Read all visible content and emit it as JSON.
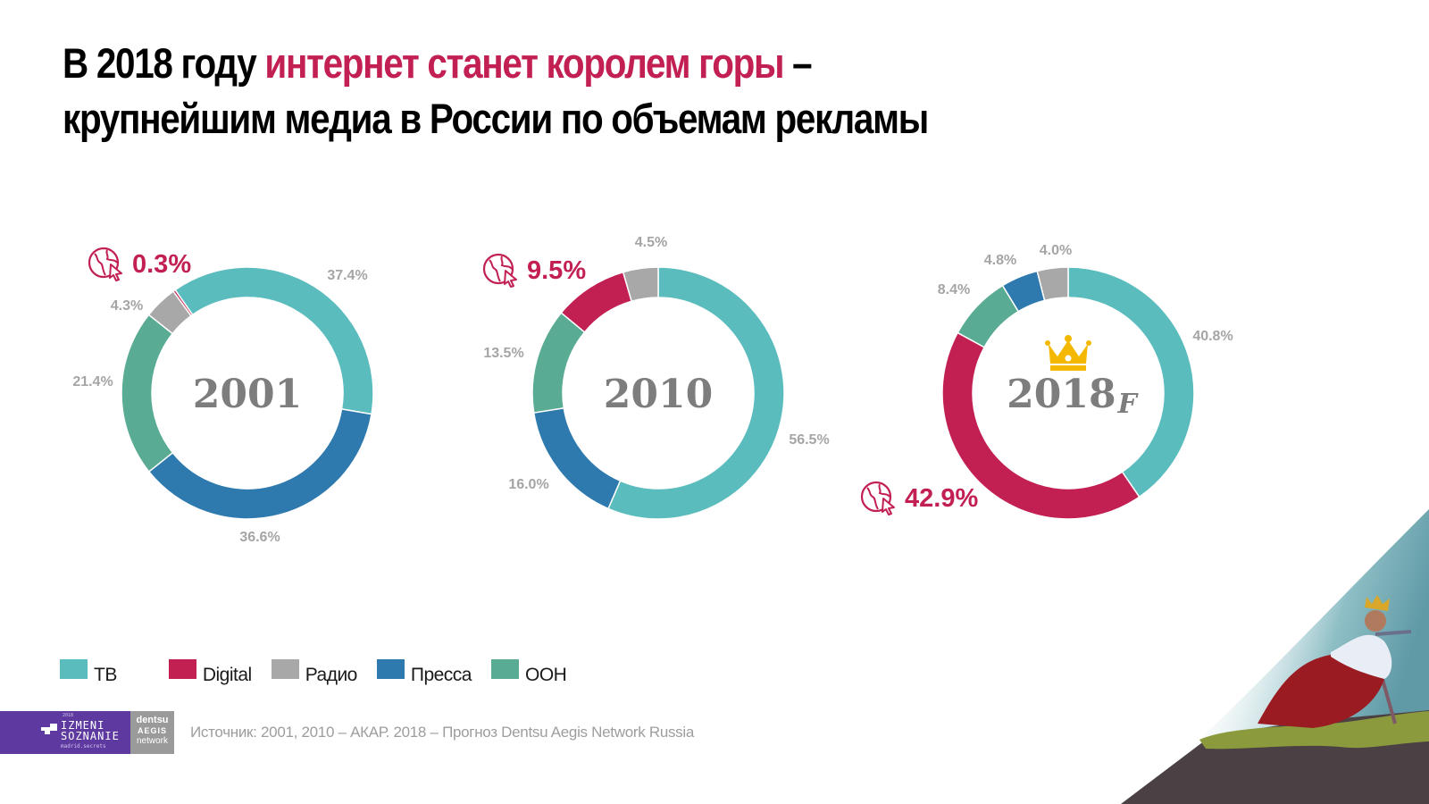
{
  "title": {
    "part1": "В 2018 году ",
    "accent": "интернет станет королем горы",
    "part2": " –",
    "line2": "крупнейшим медиа в России по объемам рекламы"
  },
  "colors": {
    "ТВ": "#5bbcbe",
    "Digital": "#c21f52",
    "Радио": "#a8a8a8",
    "Пресса": "#2e7aae",
    "OOH": "#5aab93",
    "accent": "#c21f52",
    "crown": "#f5b800"
  },
  "chart_data": [
    {
      "type": "pie",
      "title": "2001",
      "categories": [
        "ТВ",
        "Пресса",
        "OOH",
        "Радио",
        "Digital"
      ],
      "values": [
        37.4,
        36.6,
        21.4,
        4.3,
        0.3
      ],
      "labels": [
        "37.4%",
        "36.6%",
        "21.4%",
        "4.3%",
        "0.3%"
      ],
      "highlight": "Digital"
    },
    {
      "type": "pie",
      "title": "2010",
      "categories": [
        "ТВ",
        "Пресса",
        "OOH",
        "Digital",
        "Радио"
      ],
      "values": [
        56.5,
        16.0,
        13.5,
        9.5,
        4.5
      ],
      "labels": [
        "56.5%",
        "16.0%",
        "13.5%",
        "9.5%",
        "4.5%"
      ],
      "highlight": "Digital"
    },
    {
      "type": "pie",
      "title": "2018",
      "title_suffix": "F",
      "categories": [
        "ТВ",
        "Digital",
        "OOH",
        "Пресса",
        "Радио"
      ],
      "values": [
        40.8,
        42.9,
        8.4,
        4.8,
        4.0
      ],
      "labels": [
        "40.8%",
        "42.9%",
        "8.4%",
        "4.8%",
        "4.0%"
      ],
      "highlight": "Digital",
      "crown_icon": "crown-icon"
    }
  ],
  "legend": [
    {
      "label": "ТВ",
      "key": "ТВ"
    },
    {
      "label": "Digital",
      "key": "Digital"
    },
    {
      "label": "Радио",
      "key": "Радио"
    },
    {
      "label": "Пресса",
      "key": "Пресса"
    },
    {
      "label": "OOH",
      "key": "OOH"
    }
  ],
  "footer": {
    "source": "Источник: 2001, 2010 – АКАР. 2018 – Прогноз Dentsu Aegis Network Russia",
    "logo1_year": "2018",
    "logo1_line1": "IZMENI",
    "logo1_line2": "SOZNANIE",
    "logo1_sub": "madrid.secrets",
    "logo2_line1": "dentsu",
    "logo2_line2": "AEGIS",
    "logo2_line3": "network"
  },
  "icons": {
    "internet": "globe-cursor-icon"
  }
}
